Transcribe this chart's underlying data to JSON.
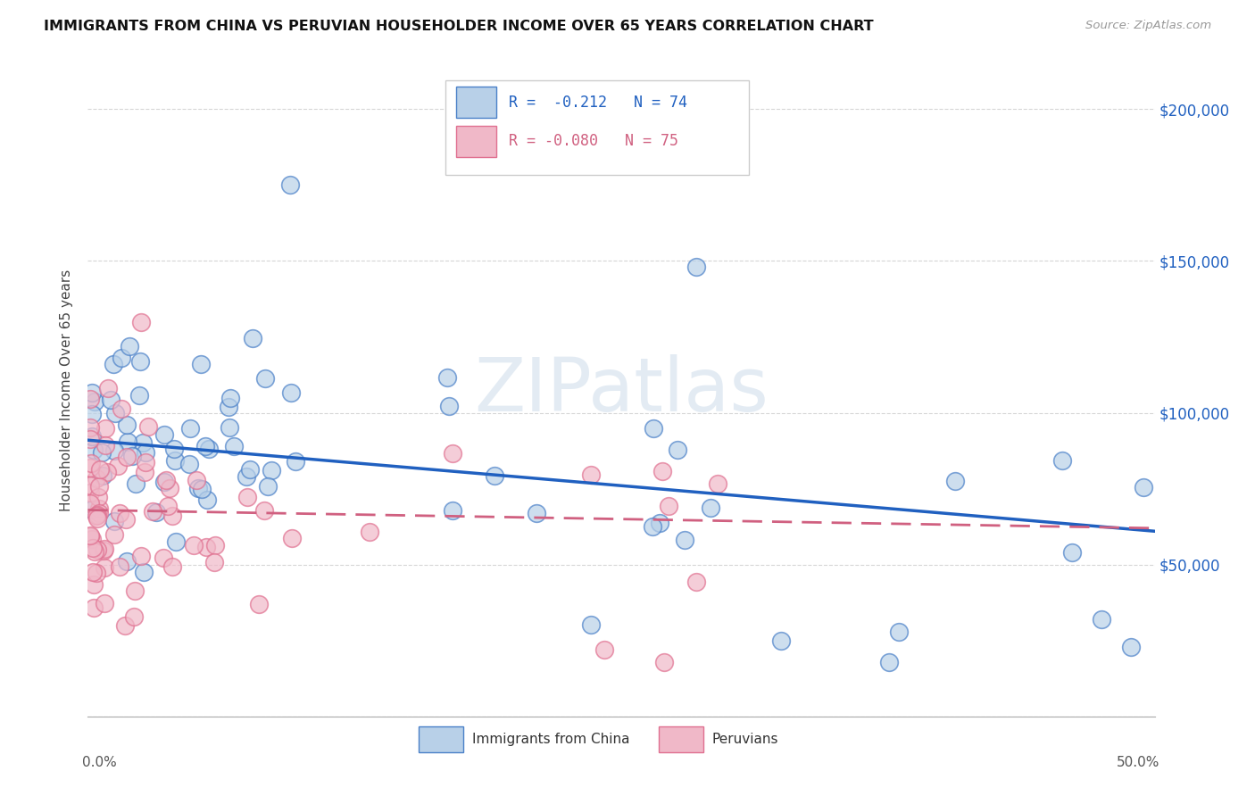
{
  "title": "IMMIGRANTS FROM CHINA VS PERUVIAN HOUSEHOLDER INCOME OVER 65 YEARS CORRELATION CHART",
  "source": "Source: ZipAtlas.com",
  "ylabel": "Householder Income Over 65 years",
  "legend_label1": "Immigrants from China",
  "legend_label2": "Peruvians",
  "legend_r1": "R =  -0.212",
  "legend_n1": "N = 74",
  "legend_r2": "R = -0.080",
  "legend_n2": "N = 75",
  "color_china_fill": "#b8d0e8",
  "color_china_edge": "#4a80c8",
  "color_peru_fill": "#f0b8c8",
  "color_peru_edge": "#e07090",
  "color_line_china": "#2060c0",
  "color_line_peru": "#d06080",
  "xlim": [
    0.0,
    0.5
  ],
  "ylim": [
    0,
    215000
  ],
  "yticks": [
    0,
    50000,
    100000,
    150000,
    200000
  ],
  "ytick_labels": [
    "",
    "$50,000",
    "$100,000",
    "$150,000",
    "$200,000"
  ],
  "china_intercept": 91000,
  "china_slope": -60000,
  "peru_intercept": 68000,
  "peru_slope": -12000
}
